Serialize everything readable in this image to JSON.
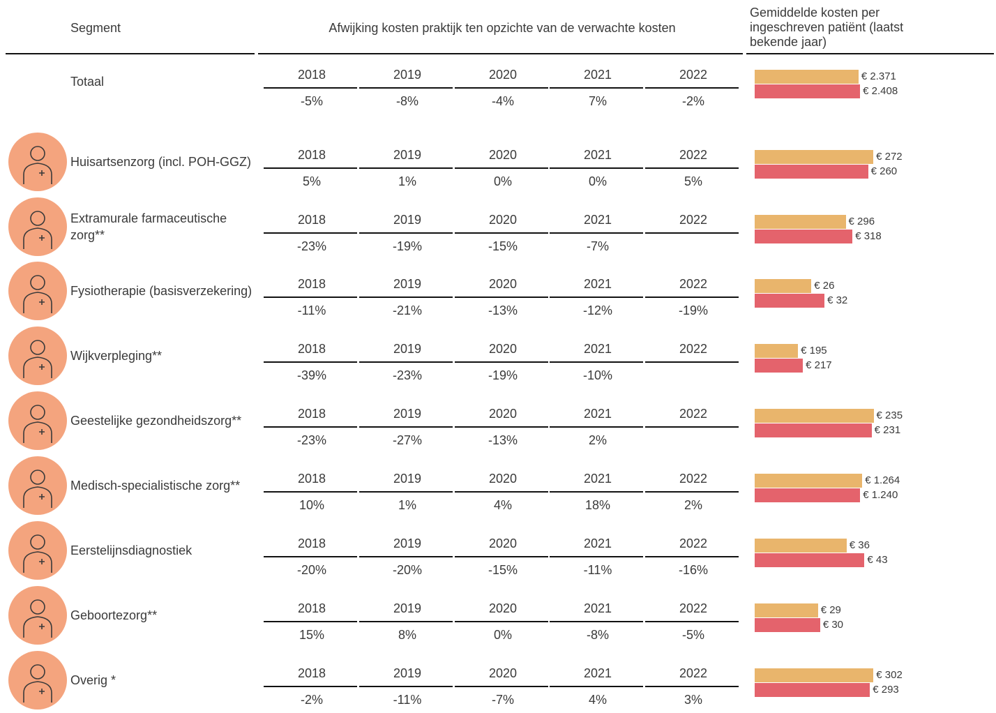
{
  "header": {
    "segment": "Segment",
    "deviation": "Afwijking kosten praktijk ten opzichte van de verwachte kosten",
    "average": "Gemiddelde kosten per ingeschreven patiënt (laatst bekende jaar)"
  },
  "colors": [
    "#e9b56c",
    "#e4636c"
  ],
  "rows": [
    {
      "segment": "Totaal",
      "years": [
        2018,
        2019,
        2020,
        2021,
        2022
      ],
      "deviations": [
        "-5%",
        "-8%",
        "-4%",
        "7%",
        "-2%"
      ],
      "costs": [
        2371,
        2408
      ],
      "cost_labels": [
        "€ 2.371",
        "€ 2.408"
      ],
      "xlim": [
        0,
        2740
      ]
    },
    {
      "segment": "Huisartsenzorg (incl. POH-GGZ)",
      "years": [
        2018,
        2019,
        2020,
        2021,
        2022
      ],
      "deviations": [
        "5%",
        "1%",
        "0%",
        "0%",
        "5%"
      ],
      "costs": [
        272,
        260
      ],
      "cost_labels": [
        "€ 272",
        "€ 260"
      ],
      "xlim": [
        0,
        275
      ]
    },
    {
      "segment": "Extramurale farmaceutische zorg**",
      "years": [
        2018,
        2019,
        2020,
        2021,
        2022
      ],
      "deviations": [
        "-23%",
        "-19%",
        "-15%",
        "-7%",
        null
      ],
      "costs": [
        296,
        318
      ],
      "cost_labels": [
        "€ 296",
        "€ 318"
      ],
      "xlim": [
        0,
        390
      ]
    },
    {
      "segment": "Fysiotherapie (basisverzekering)",
      "years": [
        2018,
        2019,
        2020,
        2021,
        2022
      ],
      "deviations": [
        "-11%",
        "-21%",
        "-13%",
        "-12%",
        "-19%"
      ],
      "costs": [
        26,
        32
      ],
      "cost_labels": [
        "€ 26",
        "€ 32"
      ],
      "xlim": [
        0,
        55
      ]
    },
    {
      "segment": "Wijkverpleging**",
      "years": [
        2018,
        2019,
        2020,
        2021,
        2022
      ],
      "deviations": [
        "-39%",
        "-23%",
        "-19%",
        "-10%",
        null
      ],
      "costs": [
        195,
        217
      ],
      "cost_labels": [
        "€ 195",
        "€ 217"
      ],
      "xlim": [
        0,
        540
      ]
    },
    {
      "segment": "Geestelijke gezondheidszorg**",
      "years": [
        2018,
        2019,
        2020,
        2021,
        2022
      ],
      "deviations": [
        "-23%",
        "-27%",
        "-13%",
        "2%",
        null
      ],
      "costs": [
        235,
        231
      ],
      "cost_labels": [
        "€ 235",
        "€ 231"
      ],
      "xlim": [
        0,
        237
      ]
    },
    {
      "segment": "Medisch-specialistische zorg**",
      "years": [
        2018,
        2019,
        2020,
        2021,
        2022
      ],
      "deviations": [
        "10%",
        "1%",
        "4%",
        "18%",
        "2%"
      ],
      "costs": [
        1264,
        1240
      ],
      "cost_labels": [
        "€ 1.264",
        "€ 1.240"
      ],
      "xlim": [
        0,
        1410
      ]
    },
    {
      "segment": "Eerstelijnsdiagnostiek",
      "years": [
        2018,
        2019,
        2020,
        2021,
        2022
      ],
      "deviations": [
        "-20%",
        "-20%",
        "-15%",
        "-11%",
        "-16%"
      ],
      "costs": [
        36,
        43
      ],
      "cost_labels": [
        "€ 36",
        "€ 43"
      ],
      "xlim": [
        0,
        47
      ]
    },
    {
      "segment": "Geboortezorg**",
      "years": [
        2018,
        2019,
        2020,
        2021,
        2022
      ],
      "deviations": [
        "15%",
        "8%",
        "0%",
        "-8%",
        "-5%"
      ],
      "costs": [
        29,
        30
      ],
      "cost_labels": [
        "€ 29",
        "€ 30"
      ],
      "xlim": [
        0,
        55
      ]
    },
    {
      "segment": "Overig *",
      "years": [
        2018,
        2019,
        2020,
        2021,
        2022
      ],
      "deviations": [
        "-2%",
        "-11%",
        "-7%",
        "4%",
        "3%"
      ],
      "costs": [
        302,
        293
      ],
      "cost_labels": [
        "€ 302",
        "€ 293"
      ],
      "xlim": [
        0,
        305
      ]
    }
  ]
}
